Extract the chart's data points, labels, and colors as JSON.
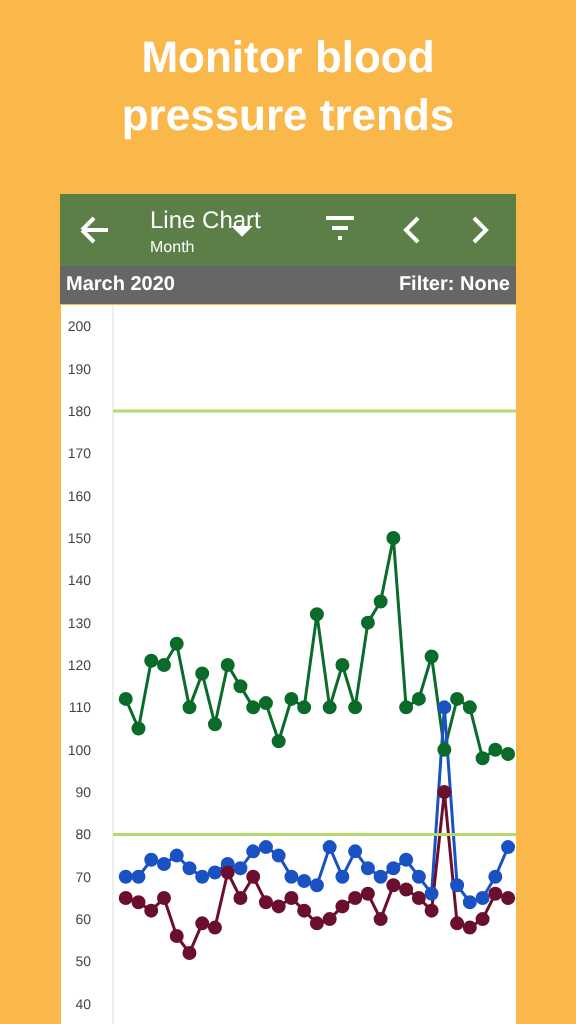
{
  "chart_data": {
    "type": "line",
    "title": "Monitor blood pressure trends",
    "annotations": [
      "Line Chart",
      "Month",
      "March 2020",
      "Filter: None"
    ],
    "categories": [
      null,
      null,
      null,
      null,
      null,
      null,
      null,
      null,
      null,
      null,
      null,
      null,
      null,
      null,
      null,
      null,
      null,
      null,
      null,
      null,
      null,
      null,
      null,
      null,
      null,
      null,
      null,
      null,
      null,
      null,
      null
    ],
    "series": [
      {
        "color": "#0b6b2a",
        "values": [
          112,
          105,
          121,
          120,
          125,
          110,
          118,
          106,
          120,
          115,
          110,
          111,
          102,
          112,
          110,
          132,
          110,
          120,
          110,
          130,
          135,
          150,
          110,
          112,
          122,
          100,
          112,
          110,
          98,
          100,
          99
        ]
      },
      {
        "color": "#1a52c4",
        "values": [
          70,
          70,
          74,
          73,
          75,
          72,
          70,
          71,
          73,
          72,
          76,
          77,
          75,
          70,
          69,
          68,
          77,
          70,
          76,
          72,
          70,
          72,
          74,
          70,
          66,
          110,
          68,
          64,
          65,
          70,
          77
        ]
      },
      {
        "color": "#6b0f2f",
        "values": [
          65,
          64,
          62,
          65,
          56,
          52,
          59,
          58,
          71,
          65,
          70,
          64,
          63,
          65,
          62,
          59,
          60,
          63,
          65,
          66,
          60,
          68,
          67,
          65,
          62,
          90,
          59,
          58,
          60,
          66,
          65
        ]
      }
    ],
    "ylim": [
      35,
      205
    ],
    "yticks": [
      40,
      50,
      60,
      70,
      80,
      90,
      100,
      110,
      120,
      130,
      140,
      150,
      160,
      170,
      180,
      190,
      200
    ],
    "ref_lines": [
      {
        "axis": "y",
        "value": 180,
        "color": "#b5d96b"
      },
      {
        "axis": "y",
        "value": 80,
        "color": "#b5d96b"
      }
    ],
    "grid": false,
    "marker": "circle",
    "line_style": "solid"
  }
}
